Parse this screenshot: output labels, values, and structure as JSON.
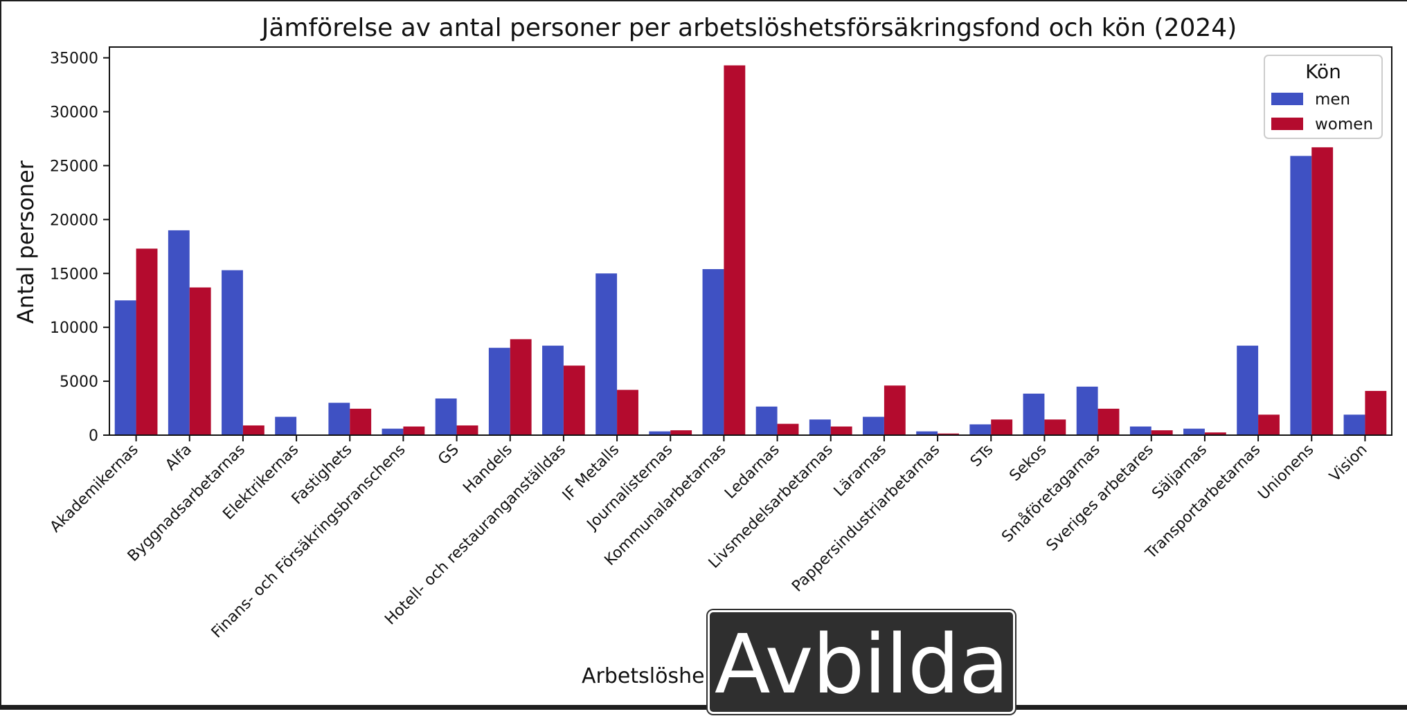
{
  "chart_data": {
    "type": "bar",
    "title": "Jämförelse av antal personer per arbetslöshetsförsäkringsfond och kön (2024)",
    "xlabel": "Arbetslöshe",
    "ylabel": "Antal personer",
    "ylim": [
      0,
      36000
    ],
    "yticks": [
      0,
      5000,
      10000,
      15000,
      20000,
      25000,
      30000,
      35000
    ],
    "legend": {
      "title": "Kön",
      "position": "top-right"
    },
    "categories": [
      "Akademikernas",
      "Alfa",
      "Byggnadsarbetarnas",
      "Elektrikernas",
      "Fastighets",
      "Finans- och Försäkringsbranschens",
      "GS",
      "Handels",
      "Hotell- och restauranganställdas",
      "IF Metalls",
      "Journalisternas",
      "Kommunalarbetarnas",
      "Ledarnas",
      "Livsmedelsarbetarnas",
      "Lärarnas",
      "Pappersindustriarbetarnas",
      "STs",
      "Sekos",
      "Småföretagarnas",
      "Sveriges arbetares",
      "Säljarnas",
      "Transportarbetarnas",
      "Unionens",
      "Vision"
    ],
    "series": [
      {
        "name": "men",
        "color": "#3f51c3",
        "values": [
          12500,
          19000,
          15300,
          1700,
          3000,
          600,
          3400,
          8100,
          8300,
          15000,
          350,
          15400,
          2650,
          1450,
          1700,
          350,
          1000,
          3850,
          4500,
          800,
          600,
          8300,
          25900,
          1900
        ]
      },
      {
        "name": "women",
        "color": "#b40b2e",
        "values": [
          17300,
          13700,
          900,
          0,
          2450,
          800,
          900,
          8900,
          6450,
          4200,
          450,
          34300,
          1050,
          800,
          4600,
          150,
          1450,
          1450,
          2450,
          450,
          250,
          1900,
          26700,
          4100
        ]
      }
    ]
  },
  "overlay_button": {
    "label": "Avbilda"
  }
}
